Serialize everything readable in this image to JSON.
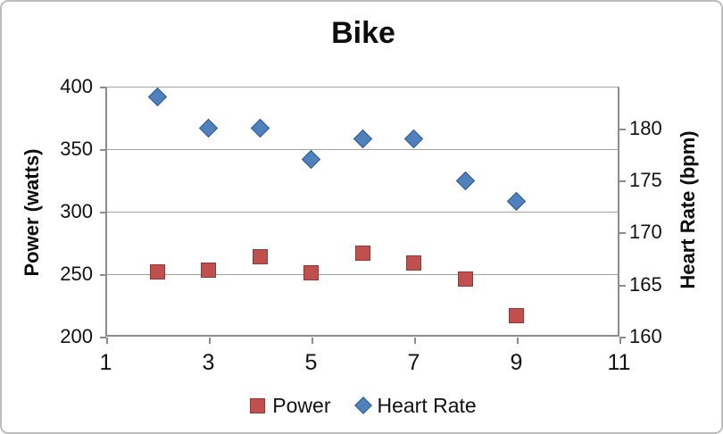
{
  "chart_data": {
    "type": "scatter",
    "title": "Bike",
    "x": [
      2,
      3,
      4,
      5,
      6,
      7,
      8,
      9
    ],
    "series": [
      {
        "name": "Power",
        "axis": "left",
        "marker": "square",
        "color": "#c0504d",
        "border_color": "#953735",
        "values": [
          252,
          253,
          264,
          251,
          267,
          259,
          246,
          217
        ]
      },
      {
        "name": "Heart Rate",
        "axis": "right",
        "marker": "diamond",
        "color": "#4f81bd",
        "border_color": "#31588c",
        "values": [
          183,
          180,
          180,
          177,
          179,
          179,
          175,
          173
        ]
      }
    ],
    "x_axis": {
      "min": 1,
      "max": 11,
      "ticks": [
        1,
        3,
        5,
        7,
        9,
        11
      ]
    },
    "left_axis": {
      "label": "Power (watts)",
      "min": 200,
      "max": 400,
      "ticks": [
        200,
        250,
        300,
        350,
        400
      ]
    },
    "right_axis": {
      "label": "Heart Rate (bpm)",
      "min": 160,
      "max": 184,
      "ticks": [
        160,
        165,
        170,
        175,
        180
      ]
    },
    "legend": {
      "position": "bottom",
      "entries": [
        "Power",
        "Heart Rate"
      ]
    },
    "grid": true,
    "colors": {
      "background": "#ffffff",
      "gridline": "#a3a3a3",
      "axis_line": "#8c8c8c",
      "text": "#121212",
      "frame_border": "#bdbdbd"
    }
  }
}
